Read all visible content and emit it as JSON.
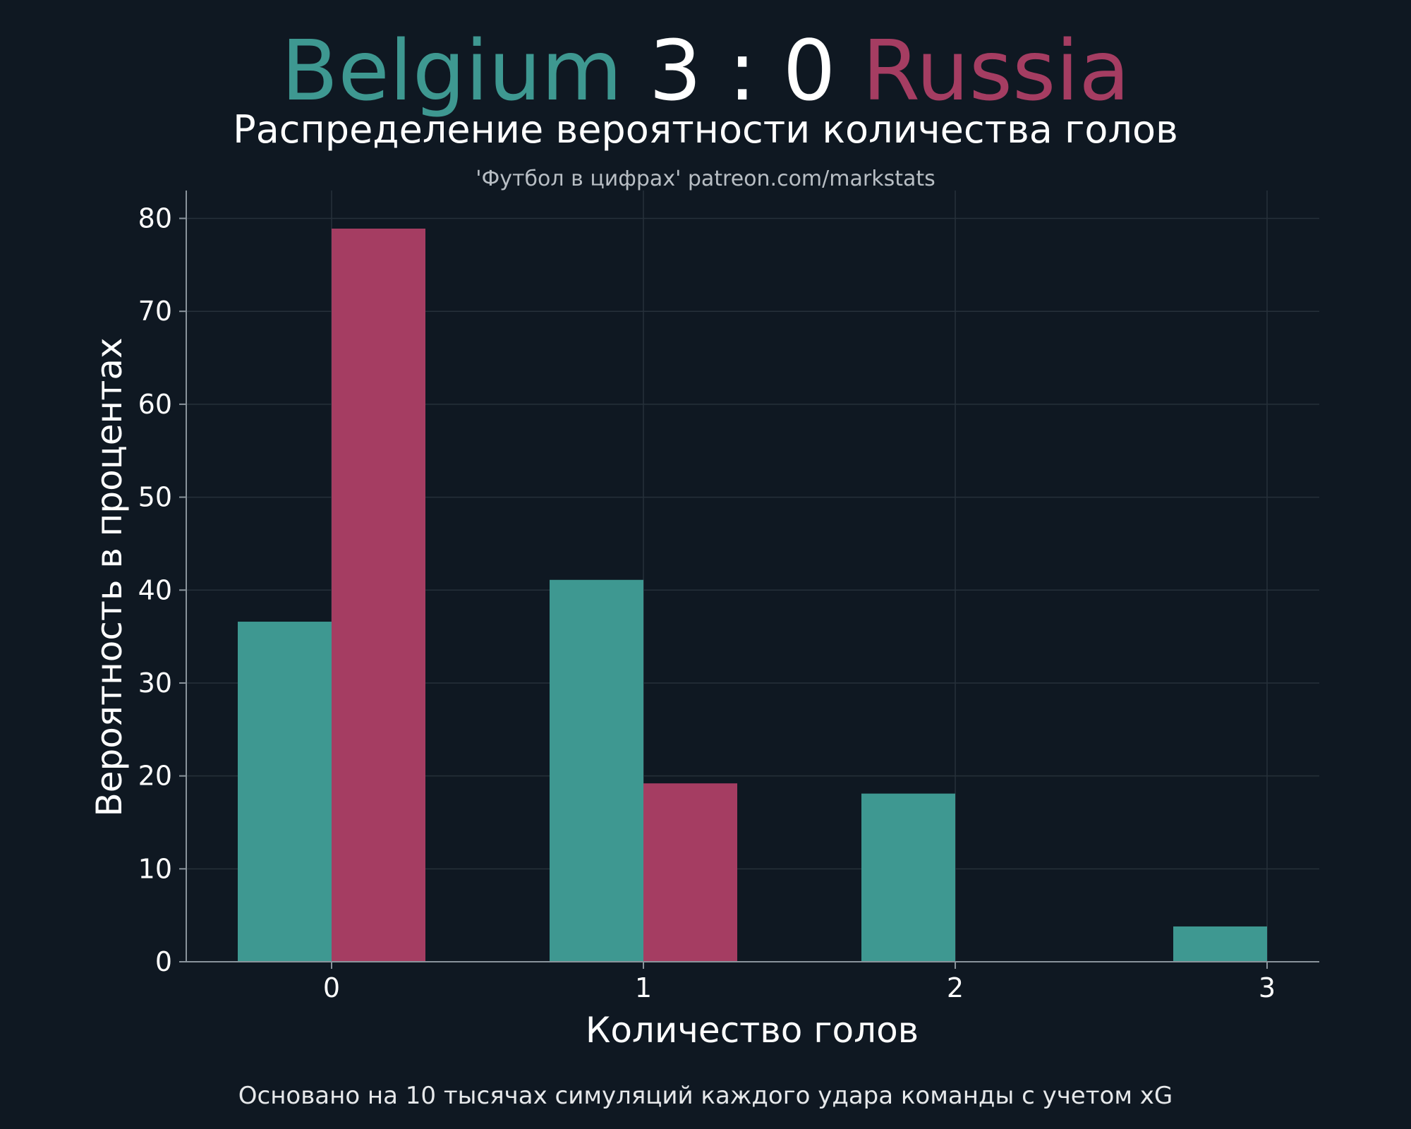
{
  "header": {
    "home_team": "Belgium",
    "score": "3 : 0",
    "away_team": "Russia",
    "subtitle": "Распределение вероятности количества голов",
    "credit": "'Футбол в цифрах' patreon.com/markstats"
  },
  "footer": {
    "note": "Основано на 10 тысячах симуляций каждого удара команды с учетом xG"
  },
  "colors": {
    "background": "#0f1822",
    "home": "#3e9891",
    "away": "#a53d62",
    "grid": "#26303a",
    "axis": "#8a949c"
  },
  "chart_data": {
    "type": "bar",
    "categories": [
      "0",
      "1",
      "2",
      "3"
    ],
    "series": [
      {
        "name": "Belgium",
        "values": [
          36.6,
          41.1,
          18.1,
          3.8
        ]
      },
      {
        "name": "Russia",
        "values": [
          78.9,
          19.2,
          0,
          0
        ]
      }
    ],
    "xlabel": "Количество голов",
    "ylabel": "Вероятность в процентах",
    "ylim": [
      0,
      83
    ],
    "yticks": [
      0,
      10,
      20,
      30,
      40,
      50,
      60,
      70,
      80
    ],
    "grid": true
  }
}
